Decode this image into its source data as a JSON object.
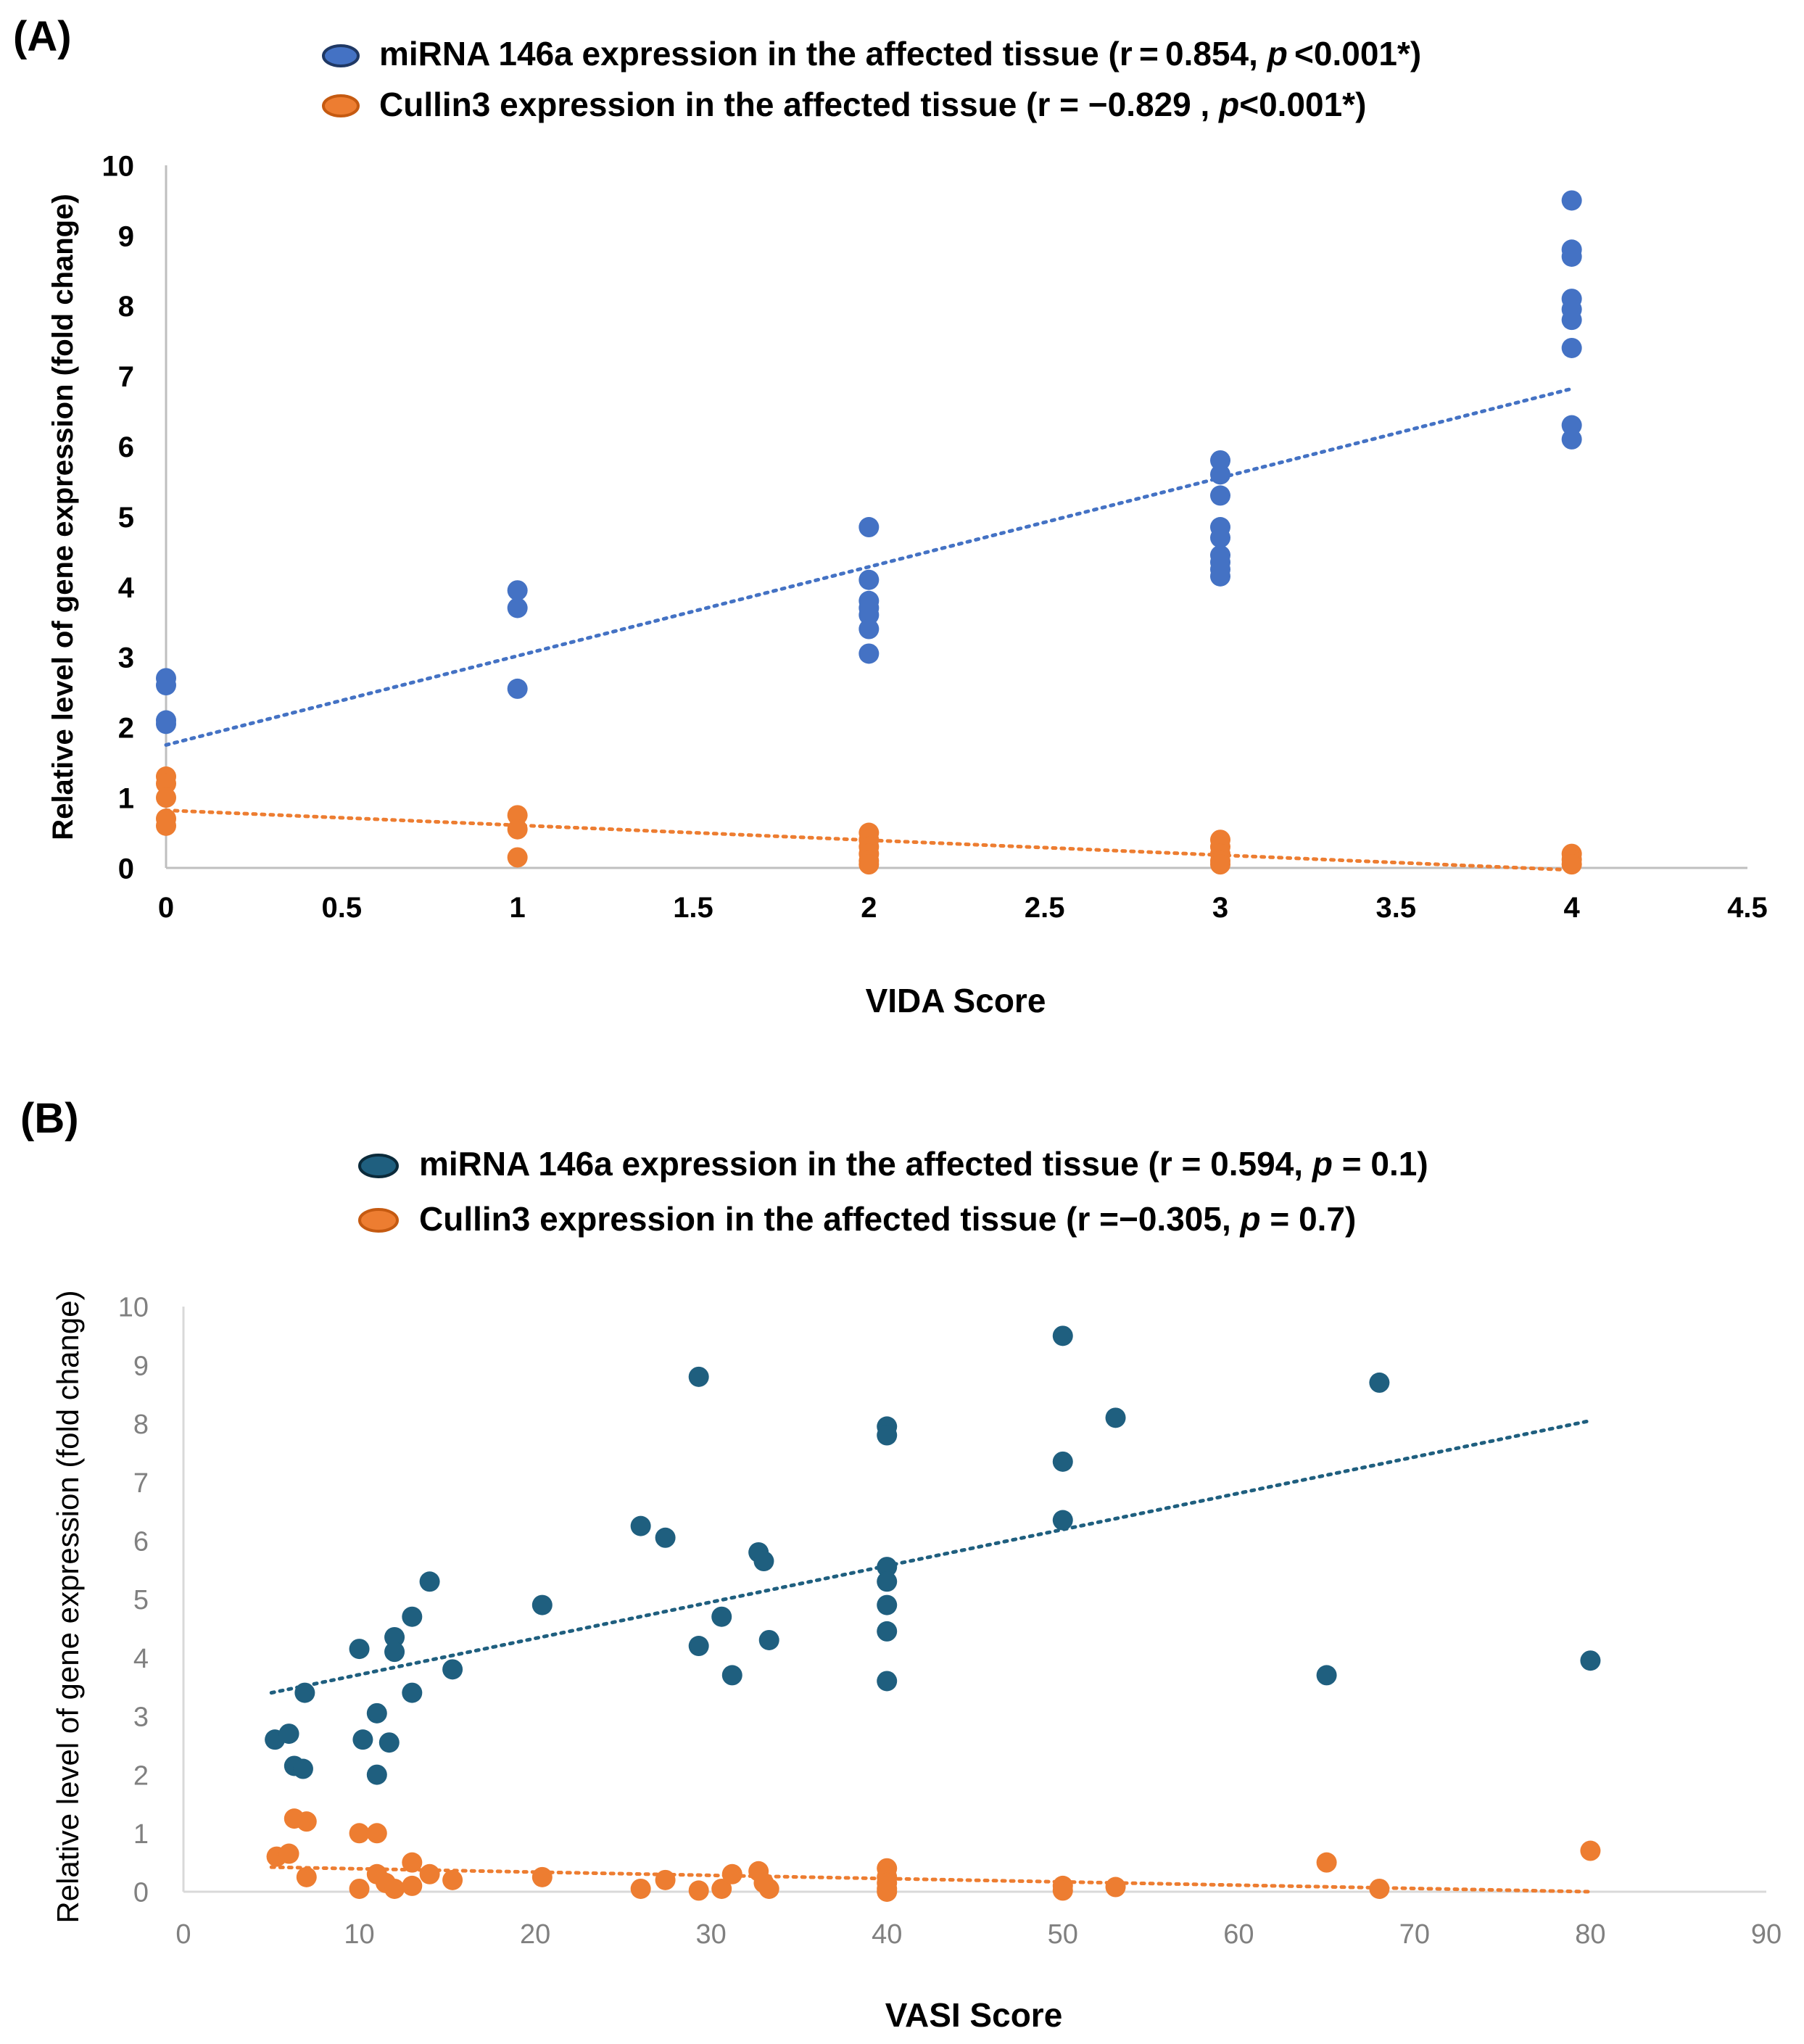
{
  "chart_data": [
    {
      "panel_label": "(A)",
      "type": "scatter",
      "xlabel": "VIDA Score",
      "ylabel": "Relative level of gene expression (fold change)",
      "xlim": [
        0,
        4.5
      ],
      "ylim": [
        0,
        10
      ],
      "x_ticks": [
        "0",
        "0.5",
        "1",
        "1.5",
        "2",
        "2.5",
        "3",
        "3.5",
        "4",
        "4.5"
      ],
      "y_ticks": [
        "0",
        "1",
        "2",
        "3",
        "4",
        "5",
        "6",
        "7",
        "8",
        "9",
        "10"
      ],
      "gridlines": false,
      "legend_position": "top",
      "series": [
        {
          "name": "miRNA 146a expression in the affected tissue",
          "legend_prefix": "miRNA 146a expression in the affected tissue (r = 0.854, ",
          "legend_p": "p",
          "legend_suffix": " <0.001*)",
          "color": "#4472C4",
          "trendline": {
            "x0": 0,
            "y0": 1.75,
            "x1": 4,
            "y1": 6.82
          },
          "points": [
            [
              0,
              2.7
            ],
            [
              0,
              2.6
            ],
            [
              0,
              2.1
            ],
            [
              0,
              2.05
            ],
            [
              1,
              3.95
            ],
            [
              1,
              3.7
            ],
            [
              1,
              2.55
            ],
            [
              2,
              4.85
            ],
            [
              2,
              4.1
            ],
            [
              2,
              3.8
            ],
            [
              2,
              3.7
            ],
            [
              2,
              3.6
            ],
            [
              2,
              3.4
            ],
            [
              2,
              3.05
            ],
            [
              3,
              5.8
            ],
            [
              3,
              5.6
            ],
            [
              3,
              5.3
            ],
            [
              3,
              4.85
            ],
            [
              3,
              4.7
            ],
            [
              3,
              4.45
            ],
            [
              3,
              4.35
            ],
            [
              3,
              4.25
            ],
            [
              3,
              4.15
            ],
            [
              4,
              9.5
            ],
            [
              4,
              8.8
            ],
            [
              4,
              8.7
            ],
            [
              4,
              8.1
            ],
            [
              4,
              7.95
            ],
            [
              4,
              7.8
            ],
            [
              4,
              7.4
            ],
            [
              4,
              6.3
            ],
            [
              4,
              6.1
            ]
          ]
        },
        {
          "name": "Cullin3 expression in the affected tissue",
          "legend_prefix": "Cullin3 expression in the affected tissue (r = −0.829 , ",
          "legend_p": "p",
          "legend_suffix": "<0.001*)",
          "color": "#ED7D31",
          "trendline": {
            "x0": 0,
            "y0": 0.82,
            "x1": 4,
            "y1": -0.03
          },
          "points": [
            [
              0,
              1.3
            ],
            [
              0,
              1.2
            ],
            [
              0,
              1.0
            ],
            [
              0,
              0.7
            ],
            [
              0,
              0.6
            ],
            [
              1,
              0.75
            ],
            [
              1,
              0.55
            ],
            [
              1,
              0.15
            ],
            [
              2,
              0.5
            ],
            [
              2,
              0.4
            ],
            [
              2,
              0.3
            ],
            [
              2,
              0.2
            ],
            [
              2,
              0.1
            ],
            [
              2,
              0.05
            ],
            [
              3,
              0.4
            ],
            [
              3,
              0.3
            ],
            [
              3,
              0.2
            ],
            [
              3,
              0.1
            ],
            [
              3,
              0.05
            ],
            [
              4,
              0.2
            ],
            [
              4,
              0.12
            ],
            [
              4,
              0.05
            ]
          ]
        }
      ]
    },
    {
      "panel_label": "(B)",
      "type": "scatter",
      "xlabel": "VASI Score",
      "ylabel": "Relative level of gene expression (fold change)",
      "xlim": [
        0,
        90
      ],
      "ylim": [
        0,
        10
      ],
      "x_ticks": [
        "0",
        "10",
        "20",
        "30",
        "40",
        "50",
        "60",
        "70",
        "80",
        "90"
      ],
      "y_ticks": [
        "0",
        "1",
        "2",
        "3",
        "4",
        "5",
        "6",
        "7",
        "8",
        "9",
        "10"
      ],
      "gridlines": false,
      "legend_position": "top",
      "series": [
        {
          "name": "miRNA 146a expression in the affected tissue",
          "legend_prefix": "miRNA 146a expression in the affected tissue (r = 0.594, ",
          "legend_p": "p",
          "legend_suffix": " = 0.1)",
          "color": "#1F5F7F",
          "trendline": {
            "x0": 5,
            "y0": 3.4,
            "x1": 80,
            "y1": 8.05
          },
          "points": [
            [
              5.2,
              2.6
            ],
            [
              6,
              2.7
            ],
            [
              6.3,
              2.15
            ],
            [
              6.8,
              2.1
            ],
            [
              6.9,
              3.4
            ],
            [
              10,
              4.15
            ],
            [
              10.2,
              2.6
            ],
            [
              11,
              3.05
            ],
            [
              11,
              2.0
            ],
            [
              11.7,
              2.55
            ],
            [
              12,
              4.35
            ],
            [
              12,
              4.1
            ],
            [
              13,
              4.7
            ],
            [
              13,
              3.4
            ],
            [
              14,
              5.3
            ],
            [
              15.3,
              3.8
            ],
            [
              20.4,
              4.9
            ],
            [
              26,
              6.25
            ],
            [
              27.4,
              6.05
            ],
            [
              29.3,
              8.8
            ],
            [
              29.3,
              4.2
            ],
            [
              30.6,
              4.7
            ],
            [
              31.2,
              3.7
            ],
            [
              32.7,
              5.8
            ],
            [
              33,
              5.65
            ],
            [
              33.3,
              4.3
            ],
            [
              40,
              7.95
            ],
            [
              40,
              7.8
            ],
            [
              40,
              5.55
            ],
            [
              40,
              5.3
            ],
            [
              40,
              4.9
            ],
            [
              40,
              4.45
            ],
            [
              40,
              3.6
            ],
            [
              50,
              9.5
            ],
            [
              50,
              7.35
            ],
            [
              50,
              6.35
            ],
            [
              53,
              8.1
            ],
            [
              65,
              3.7
            ],
            [
              68,
              8.7
            ],
            [
              80,
              3.95
            ]
          ]
        },
        {
          "name": "Cullin3 expression in the affected tissue",
          "legend_prefix": "Cullin3 expression in the affected tissue (r =−0.305, ",
          "legend_p": "p",
          "legend_suffix": " = 0.7)",
          "color": "#ED7D31",
          "trendline": {
            "x0": 5,
            "y0": 0.42,
            "x1": 80,
            "y1": 0.0
          },
          "points": [
            [
              5.3,
              0.6
            ],
            [
              6,
              0.65
            ],
            [
              6.3,
              1.25
            ],
            [
              7,
              1.2
            ],
            [
              7,
              0.25
            ],
            [
              10,
              1.0
            ],
            [
              10,
              0.05
            ],
            [
              11,
              1.0
            ],
            [
              11,
              0.3
            ],
            [
              11.5,
              0.15
            ],
            [
              12,
              0.05
            ],
            [
              13,
              0.5
            ],
            [
              13,
              0.1
            ],
            [
              14,
              0.3
            ],
            [
              15.3,
              0.2
            ],
            [
              20.4,
              0.25
            ],
            [
              26,
              0.05
            ],
            [
              27.4,
              0.2
            ],
            [
              29.3,
              0.02
            ],
            [
              30.6,
              0.05
            ],
            [
              31.2,
              0.3
            ],
            [
              32.7,
              0.35
            ],
            [
              33,
              0.15
            ],
            [
              33.3,
              0.05
            ],
            [
              40,
              0.4
            ],
            [
              40,
              0.25
            ],
            [
              40,
              0.15
            ],
            [
              40,
              0.05
            ],
            [
              40,
              0.0
            ],
            [
              50,
              0.1
            ],
            [
              50,
              0.02
            ],
            [
              53,
              0.08
            ],
            [
              65,
              0.5
            ],
            [
              68,
              0.05
            ],
            [
              80,
              0.7
            ]
          ]
        }
      ]
    }
  ]
}
